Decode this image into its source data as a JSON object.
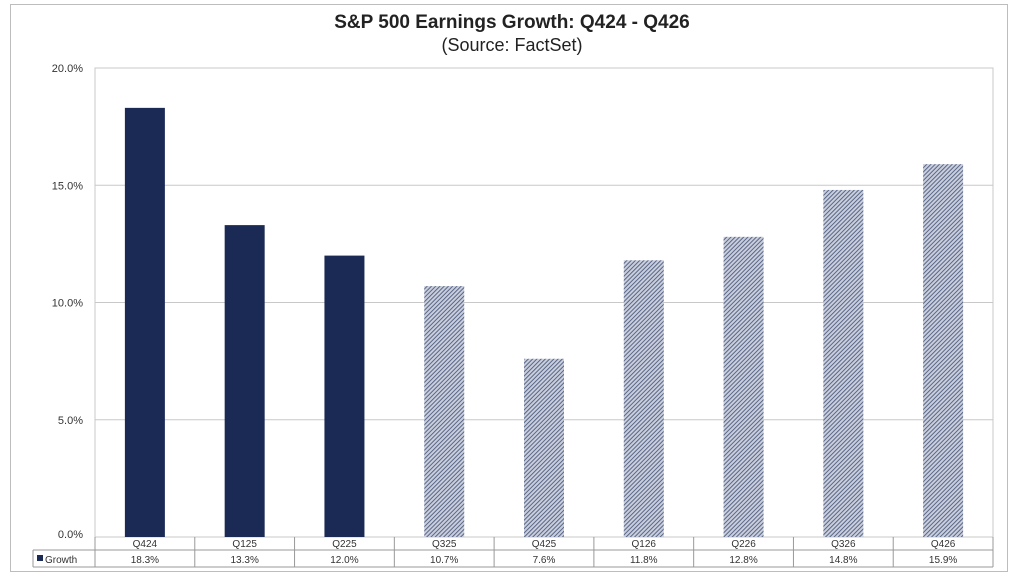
{
  "chart_data": {
    "type": "bar",
    "title": "S&P 500 Earnings Growth: Q424 - Q426",
    "subtitle": "(Source: FactSet)",
    "categories": [
      "Q424",
      "Q125",
      "Q225",
      "Q325",
      "Q425",
      "Q126",
      "Q226",
      "Q326",
      "Q426"
    ],
    "series": [
      {
        "name": "Growth",
        "values": [
          18.3,
          13.3,
          12.0,
          10.7,
          7.6,
          11.8,
          12.8,
          14.8,
          15.9
        ]
      }
    ],
    "data_labels": [
      "18.3%",
      "13.3%",
      "12.0%",
      "10.7%",
      "7.6%",
      "11.8%",
      "12.8%",
      "14.8%",
      "15.9%"
    ],
    "actual_count": 3,
    "ylim": [
      0,
      20
    ],
    "yticks": [
      "0.0%",
      "5.0%",
      "10.0%",
      "15.0%",
      "20.0%"
    ],
    "grid": true,
    "legend": "data-table",
    "colors": {
      "actual": "#1b2a55",
      "estimate": "#6e7a99"
    }
  }
}
